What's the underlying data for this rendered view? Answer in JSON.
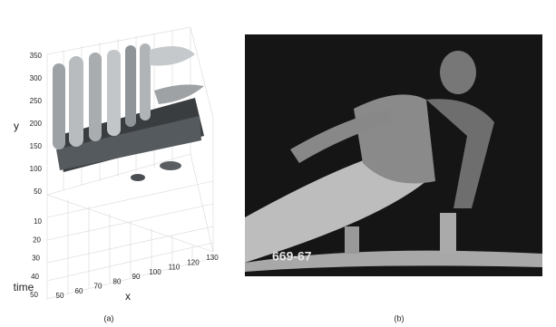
{
  "panels": [
    {
      "caption": "(a)",
      "axes": {
        "y": {
          "label": "y",
          "ticks": [
            50,
            100,
            150,
            200,
            250,
            300,
            350
          ]
        },
        "time": {
          "label": "time",
          "ticks": [
            10,
            20,
            30,
            40,
            50
          ]
        },
        "x": {
          "label": "x",
          "ticks": [
            50,
            60,
            70,
            80,
            90,
            100,
            110,
            120,
            130
          ]
        }
      }
    },
    {
      "caption": "(b)",
      "overlay": "669-67"
    }
  ]
}
